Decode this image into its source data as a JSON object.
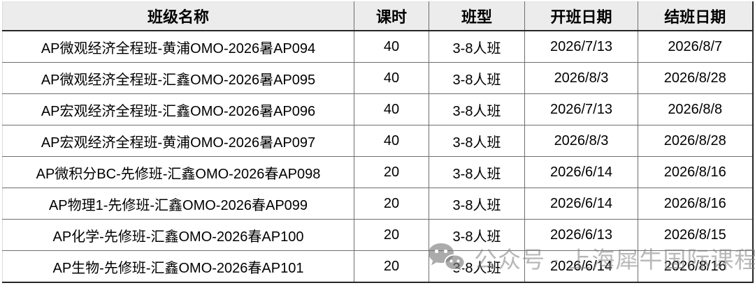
{
  "chart_data": {
    "type": "table",
    "columns": [
      "班级名称",
      "课时",
      "班型",
      "开班日期",
      "结班日期"
    ],
    "rows": [
      [
        "AP微观经济全程班-黄浦OMO-2026暑AP094",
        "40",
        "3-8人班",
        "2026/7/13",
        "2026/8/7"
      ],
      [
        "AP微观经济全程班-汇鑫OMO-2026暑AP095",
        "40",
        "3-8人班",
        "2026/8/3",
        "2026/8/28"
      ],
      [
        "AP宏观经济全程班-汇鑫OMO-2026暑AP096",
        "40",
        "3-8人班",
        "2026/7/13",
        "2026/8/8"
      ],
      [
        "AP宏观经济全程班-黄浦OMO-2026暑AP097",
        "40",
        "3-8人班",
        "2026/8/3",
        "2026/8/28"
      ],
      [
        "AP微积分BC-先修班-汇鑫OMO-2026春AP098",
        "20",
        "3-8人班",
        "2026/6/14",
        "2026/8/16"
      ],
      [
        "AP物理1-先修班-汇鑫OMO-2026春AP099",
        "20",
        "3-8人班",
        "2026/6/14",
        "2026/8/16"
      ],
      [
        "AP化学-先修班-汇鑫OMO-2026春AP100",
        "20",
        "3-8人班",
        "2026/6/13",
        "2026/8/15"
      ],
      [
        "AP生物-先修班-汇鑫OMO-2026春AP101",
        "20",
        "3-8人班",
        "2026/6/14",
        "2026/8/16"
      ]
    ]
  },
  "watermark": {
    "icon": "wechat-icon",
    "text": "公众号 · 上海犀牛国际课程"
  },
  "colors": {
    "header_bg": "#ececec",
    "border_dark": "#262626",
    "border_gray": "#6e6e6e",
    "border_light": "#d9d9d9",
    "watermark_gray": "#7d7d7d"
  }
}
